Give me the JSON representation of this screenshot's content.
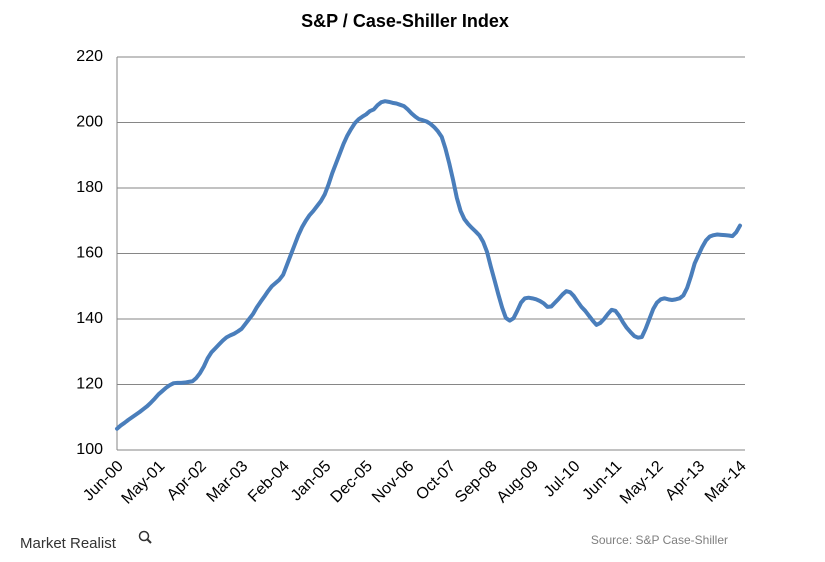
{
  "chart_data": {
    "type": "line",
    "title": "S&P / Case-Shiller Index",
    "source": "Source: S&P Case-Shiller",
    "logo": "Market Realist",
    "ylim": [
      100,
      220
    ],
    "yticks": [
      100,
      120,
      140,
      160,
      180,
      200,
      220
    ],
    "grid": true,
    "categories": [
      "Jun-00",
      null,
      null,
      null,
      null,
      null,
      null,
      null,
      null,
      null,
      null,
      "May-01",
      null,
      null,
      null,
      null,
      null,
      null,
      null,
      null,
      null,
      null,
      "Apr-02",
      null,
      null,
      null,
      null,
      null,
      null,
      null,
      null,
      null,
      null,
      "Mar-03",
      null,
      null,
      null,
      null,
      null,
      null,
      null,
      null,
      null,
      null,
      "Feb-04",
      null,
      null,
      null,
      null,
      null,
      null,
      null,
      null,
      null,
      null,
      "Jan-05",
      null,
      null,
      null,
      null,
      null,
      null,
      null,
      null,
      null,
      null,
      "Dec-05",
      null,
      null,
      null,
      null,
      null,
      null,
      null,
      null,
      null,
      null,
      "Nov-06",
      null,
      null,
      null,
      null,
      null,
      null,
      null,
      null,
      null,
      null,
      "Oct-07",
      null,
      null,
      null,
      null,
      null,
      null,
      null,
      null,
      null,
      null,
      "Sep-08",
      null,
      null,
      null,
      null,
      null,
      null,
      null,
      null,
      null,
      null,
      "Aug-09",
      null,
      null,
      null,
      null,
      null,
      null,
      null,
      null,
      null,
      null,
      "Jul-10",
      null,
      null,
      null,
      null,
      null,
      null,
      null,
      null,
      null,
      null,
      "Jun-11",
      null,
      null,
      null,
      null,
      null,
      null,
      null,
      null,
      null,
      null,
      "May-12",
      null,
      null,
      null,
      null,
      null,
      null,
      null,
      null,
      null,
      null,
      "Apr-13",
      null,
      null,
      null,
      null,
      null,
      null,
      null,
      null,
      null,
      null,
      "Mar-14"
    ],
    "series": [
      {
        "name": "S&P / Case-Shiller Index",
        "color": "#4a7ebb",
        "values": [
          106.5,
          107.5,
          108.3,
          109.2,
          110,
          110.8,
          111.6,
          112.5,
          113.4,
          114.5,
          115.7,
          117,
          118,
          119,
          119.8,
          120.4,
          120.5,
          120.5,
          120.6,
          120.8,
          121,
          122,
          123.5,
          125.5,
          128,
          129.8,
          131,
          132.2,
          133.4,
          134.4,
          135,
          135.5,
          136.2,
          137,
          138.5,
          140,
          141.5,
          143.5,
          145.2,
          146.8,
          148.5,
          150,
          151,
          152,
          153.5,
          156.5,
          159.5,
          162.5,
          165.5,
          168,
          170,
          171.7,
          173,
          174.5,
          176,
          178,
          181,
          184.5,
          187.5,
          190.5,
          193.5,
          196,
          198,
          199.8,
          201,
          201.8,
          202.5,
          203.5,
          204,
          205.3,
          206.2,
          206.5,
          206.3,
          206,
          205.8,
          205.4,
          205,
          204,
          202.8,
          201.8,
          201,
          200.7,
          200.3,
          199.6,
          198.6,
          197.3,
          195.6,
          192,
          187.5,
          182.5,
          177,
          173,
          170.5,
          169,
          167.8,
          166.7,
          165.5,
          163.5,
          160.5,
          156,
          151.8,
          147.5,
          143.5,
          140.3,
          139.5,
          140.2,
          142.5,
          145,
          146.3,
          146.5,
          146.3,
          146,
          145.5,
          144.8,
          143.7,
          143.8,
          145,
          146.2,
          147.5,
          148.5,
          148.2,
          147,
          145.3,
          143.7,
          142.5,
          141,
          139.5,
          138.2,
          138.8,
          140,
          141.5,
          142.8,
          142.5,
          141,
          139,
          137.3,
          136,
          134.8,
          134.3,
          134.5,
          137,
          140,
          143,
          145,
          146,
          146.3,
          146,
          145.8,
          146,
          146.3,
          147.2,
          149.5,
          153,
          157,
          159.5,
          162,
          164,
          165.2,
          165.6,
          165.8,
          165.7,
          165.6,
          165.5,
          165.3,
          166.5,
          168.5
        ]
      }
    ]
  }
}
